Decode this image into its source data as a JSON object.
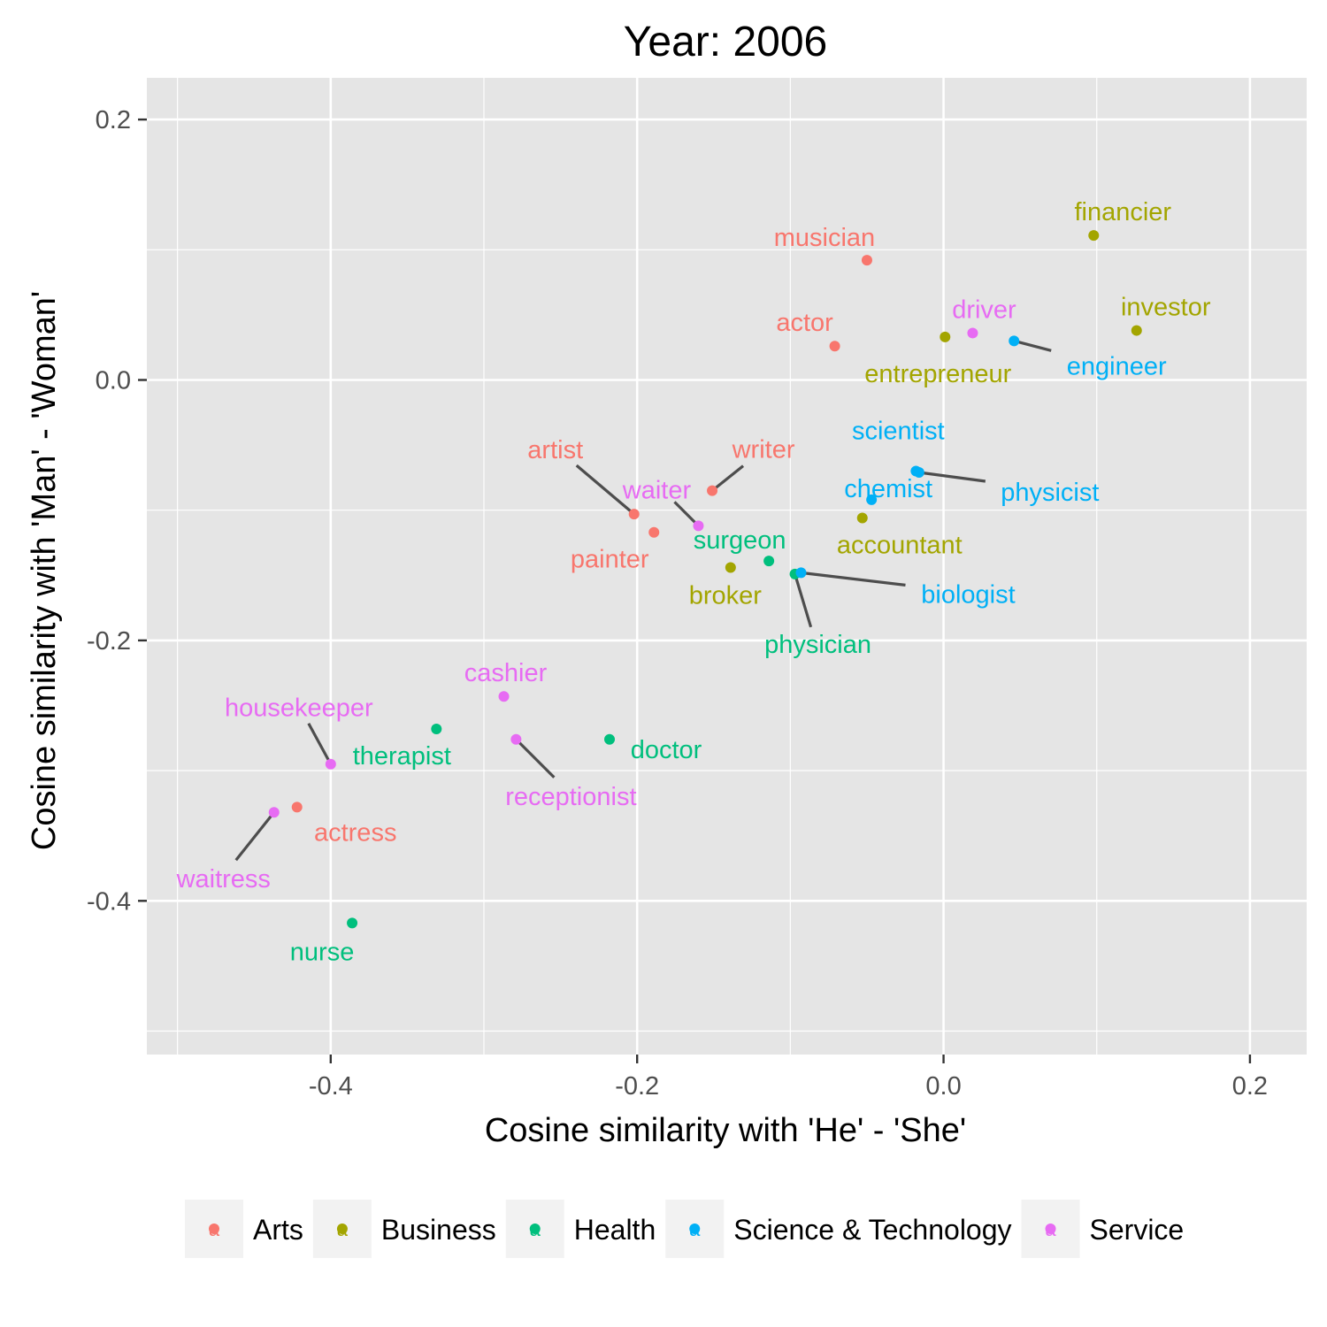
{
  "chart_data": {
    "type": "scatter",
    "title": "Year: 2006",
    "xlabel": "Cosine similarity with 'He' - 'She'",
    "ylabel": "Cosine similarity with 'Man' - 'Woman'",
    "xlim": [
      -0.52,
      0.237
    ],
    "ylim": [
      -0.518,
      0.232
    ],
    "x_ticks": [
      -0.4,
      -0.2,
      0.0,
      0.2
    ],
    "x_tick_labels": [
      "-0.4",
      "-0.2",
      "0.0",
      "0.2"
    ],
    "y_ticks": [
      -0.4,
      -0.2,
      0.0,
      0.2
    ],
    "y_tick_labels": [
      "-0.4",
      "-0.2",
      "0.0",
      "0.2"
    ],
    "grid": true,
    "legend_position": "bottom",
    "categories": [
      {
        "name": "Arts",
        "color": "#F8766D"
      },
      {
        "name": "Business",
        "color": "#A3A500"
      },
      {
        "name": "Health",
        "color": "#00BF7D"
      },
      {
        "name": "Science & Technology",
        "color": "#00B0F6"
      },
      {
        "name": "Service",
        "color": "#E76BF3"
      }
    ],
    "points": [
      {
        "label": "musician",
        "category": "Arts",
        "x": -0.05,
        "y": 0.092
      },
      {
        "label": "actor",
        "category": "Arts",
        "x": -0.071,
        "y": 0.026
      },
      {
        "label": "artist",
        "category": "Arts",
        "x": -0.202,
        "y": -0.103
      },
      {
        "label": "writer",
        "category": "Arts",
        "x": -0.151,
        "y": -0.085
      },
      {
        "label": "painter",
        "category": "Arts",
        "x": -0.189,
        "y": -0.117
      },
      {
        "label": "actress",
        "category": "Arts",
        "x": -0.422,
        "y": -0.328
      },
      {
        "label": "financier",
        "category": "Business",
        "x": 0.098,
        "y": 0.111
      },
      {
        "label": "investor",
        "category": "Business",
        "x": 0.126,
        "y": 0.038
      },
      {
        "label": "entrepreneur",
        "category": "Business",
        "x": 0.001,
        "y": 0.033
      },
      {
        "label": "accountant",
        "category": "Business",
        "x": -0.053,
        "y": -0.106
      },
      {
        "label": "broker",
        "category": "Business",
        "x": -0.139,
        "y": -0.144
      },
      {
        "label": "surgeon",
        "category": "Health",
        "x": -0.114,
        "y": -0.139
      },
      {
        "label": "physician",
        "category": "Health",
        "x": -0.097,
        "y": -0.149
      },
      {
        "label": "therapist",
        "category": "Health",
        "x": -0.331,
        "y": -0.268
      },
      {
        "label": "doctor",
        "category": "Health",
        "x": -0.218,
        "y": -0.276
      },
      {
        "label": "nurse",
        "category": "Health",
        "x": -0.386,
        "y": -0.417
      },
      {
        "label": "engineer",
        "category": "Science & Technology",
        "x": 0.046,
        "y": 0.03
      },
      {
        "label": "scientist",
        "category": "Science & Technology",
        "x": -0.018,
        "y": -0.07
      },
      {
        "label": "physicist",
        "category": "Science & Technology",
        "x": -0.016,
        "y": -0.071
      },
      {
        "label": "chemist",
        "category": "Science & Technology",
        "x": -0.047,
        "y": -0.092
      },
      {
        "label": "biologist",
        "category": "Science & Technology",
        "x": -0.093,
        "y": -0.148
      },
      {
        "label": "driver",
        "category": "Service",
        "x": 0.019,
        "y": 0.036
      },
      {
        "label": "waiter",
        "category": "Service",
        "x": -0.16,
        "y": -0.112
      },
      {
        "label": "cashier",
        "category": "Service",
        "x": -0.287,
        "y": -0.243
      },
      {
        "label": "receptionist",
        "category": "Service",
        "x": -0.279,
        "y": -0.276
      },
      {
        "label": "housekeeper",
        "category": "Service",
        "x": -0.4,
        "y": -0.295
      },
      {
        "label": "waitress",
        "category": "Service",
        "x": -0.437,
        "y": -0.332
      }
    ]
  }
}
